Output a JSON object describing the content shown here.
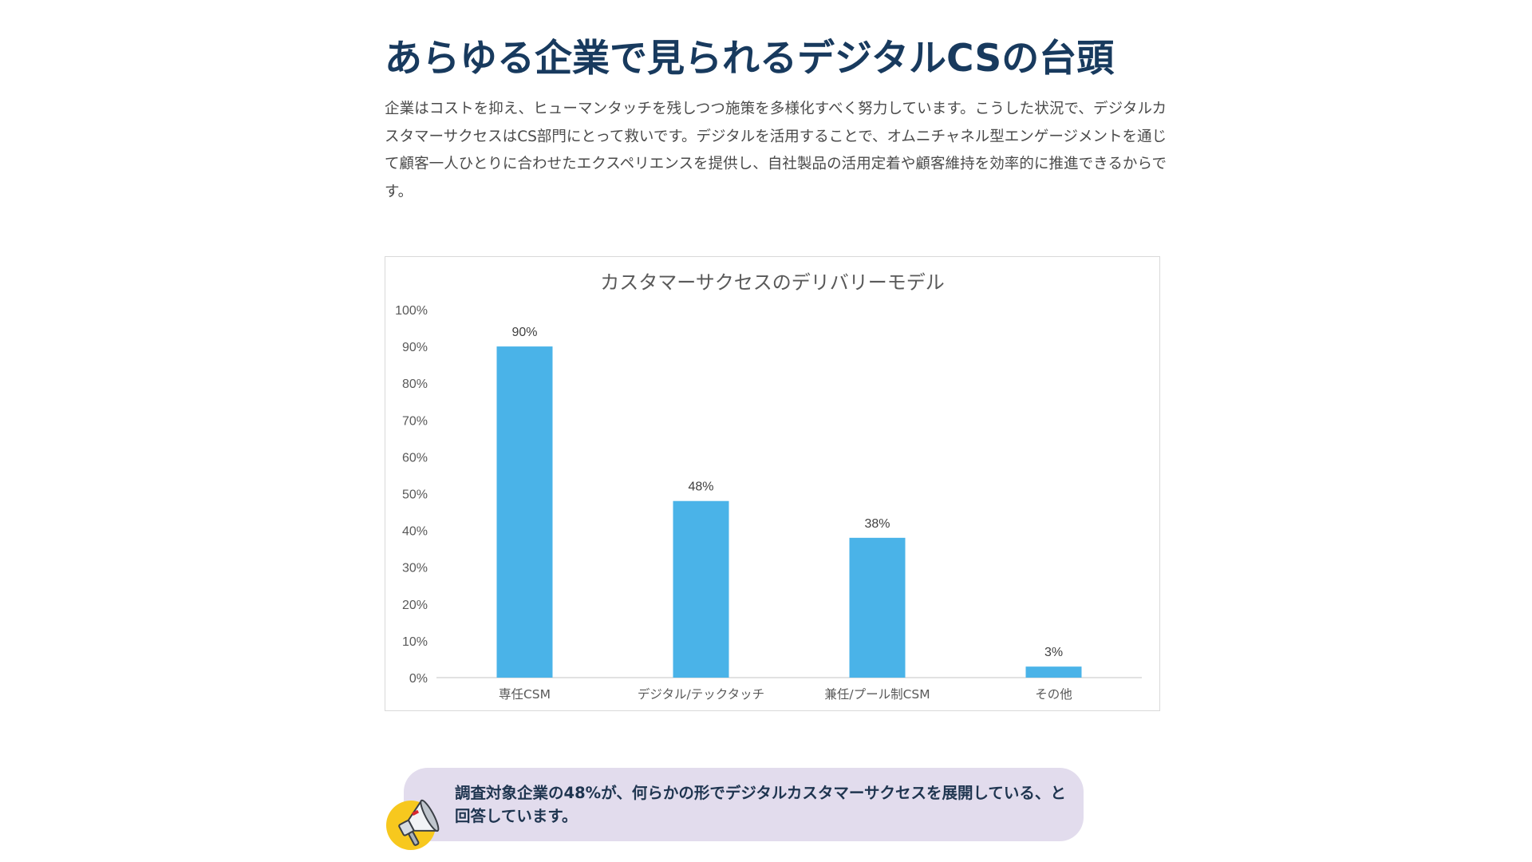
{
  "article": {
    "title": "あらゆる企業で見られるデジタルCSの台頭",
    "intro": "企業はコストを抑え、ヒューマンタッチを残しつつ施策を多様化すべく努力しています。こうした状況で、デジタルカスタマーサクセスはCS部門にとって救いです。デジタルを活用することで、オムニチャネル型エンゲージメントを通じて顧客一人ひとりに合わせたエクスペリエンスを提供し、自社製品の活用定着や顧客維持を効率的に推進できるからです。"
  },
  "chart_data": {
    "type": "bar",
    "title": "カスタマーサクセスのデリバリーモデル",
    "categories": [
      "専任CSM",
      "デジタル/テックタッチ",
      "兼任/プール制CSM",
      "その他"
    ],
    "values": [
      90,
      48,
      38,
      3
    ],
    "value_labels": [
      "90%",
      "48%",
      "38%",
      "3%"
    ],
    "ylim": [
      0,
      100
    ],
    "yticks": [
      "0%",
      "10%",
      "20%",
      "30%",
      "40%",
      "50%",
      "60%",
      "70%",
      "80%",
      "90%",
      "100%"
    ],
    "grid": false,
    "bar_color": "#4ab3e8",
    "xlabel": "",
    "ylabel": ""
  },
  "callout": {
    "text_before": "調査対象企業の",
    "highlight": "48%",
    "text_after": "が、何らかの形でデジタルカスタマーサクセスを展開している、と回答しています。",
    "icon": "megaphone-icon",
    "background": "#e2dced"
  }
}
